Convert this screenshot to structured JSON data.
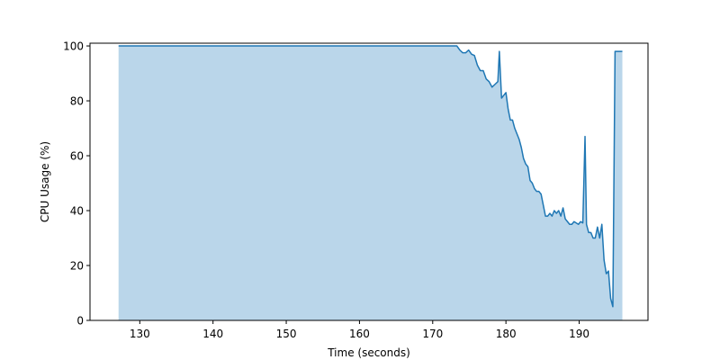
{
  "chart_data": {
    "type": "area",
    "title": "",
    "xlabel": "Time (seconds)",
    "ylabel": "CPU Usage (%)",
    "xlim": [
      123.2,
      199.4
    ],
    "ylim": [
      0,
      101
    ],
    "grid": false,
    "line_color": "#1f77b4",
    "fill_color": "#bad6ea",
    "xticks": [
      130,
      140,
      150,
      160,
      170,
      180,
      190
    ],
    "yticks": [
      0,
      20,
      40,
      60,
      80,
      100
    ],
    "xtick_labels": [
      "130",
      "140",
      "150",
      "160",
      "170",
      "180",
      "190"
    ],
    "ytick_labels": [
      "0",
      "20",
      "40",
      "60",
      "80",
      "100"
    ],
    "series": [
      {
        "x": [
          127.1,
          130,
          135,
          140,
          145,
          150,
          155,
          160,
          165,
          170,
          173.3,
          173.7,
          174.1,
          174.5,
          174.9,
          175.3,
          175.7,
          176.1,
          176.5,
          176.9,
          177.3,
          177.7,
          178.1,
          178.5,
          178.9,
          179.1,
          179.4,
          179.7,
          180.0,
          180.3,
          180.6,
          180.9,
          181.2,
          181.5,
          181.8,
          182.1,
          182.4,
          182.7,
          183.0,
          183.3,
          183.6,
          183.9,
          184.2,
          184.5,
          184.8,
          185.1,
          185.4,
          185.7,
          186.0,
          186.3,
          186.6,
          186.9,
          187.2,
          187.5,
          187.8,
          188.1,
          188.4,
          188.7,
          189.0,
          189.3,
          189.6,
          189.9,
          190.2,
          190.5,
          190.8,
          191.0,
          191.3,
          191.6,
          191.9,
          192.2,
          192.5,
          192.8,
          193.1,
          193.4,
          193.7,
          194.0,
          194.3,
          194.6,
          194.9,
          195.1,
          195.3,
          195.5,
          195.7,
          195.9
        ],
        "y": [
          100,
          100,
          100,
          100,
          100,
          100,
          100,
          100,
          100,
          100,
          100,
          98.5,
          97.5,
          97.5,
          98.5,
          97,
          96.5,
          93,
          91,
          91,
          88,
          87,
          85,
          86,
          87,
          98,
          81,
          82,
          83,
          77,
          73,
          73,
          70,
          68,
          66,
          63,
          59,
          57,
          56,
          51,
          50,
          48,
          47,
          47,
          46,
          42,
          38,
          38,
          39,
          38,
          40,
          39,
          40,
          38,
          41,
          37,
          36,
          35,
          35,
          36,
          35.5,
          35,
          36,
          35.5,
          67,
          35,
          32,
          32,
          30,
          30,
          34,
          30,
          35,
          22,
          17,
          18,
          8,
          5,
          98,
          98,
          98,
          98,
          98,
          98
        ]
      }
    ]
  }
}
